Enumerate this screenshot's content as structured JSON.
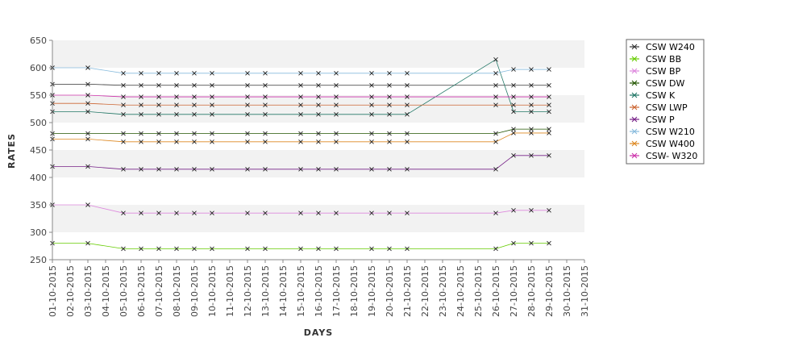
{
  "chart_data": {
    "type": "line",
    "xlabel": "DAYS",
    "ylabel": "RATES",
    "ylim": [
      250,
      650
    ],
    "yticks": [
      250,
      300,
      350,
      400,
      450,
      500,
      550,
      600,
      650
    ],
    "xlim": [
      "2015-10-01",
      "2015-10-31"
    ],
    "xtick_labels": [
      "01-10-2015",
      "02-10-2015",
      "03-10-2015",
      "04-10-2015",
      "05-10-2015",
      "06-10-2015",
      "07-10-2015",
      "08-10-2015",
      "09-10-2015",
      "10-10-2015",
      "11-10-2015",
      "12-10-2015",
      "13-10-2015",
      "14-10-2015",
      "15-10-2015",
      "16-10-2015",
      "17-10-2015",
      "18-10-2015",
      "19-10-2015",
      "20-10-2015",
      "21-10-2015",
      "22-10-2015",
      "23-10-2015",
      "24-10-2015",
      "25-10-2015",
      "26-10-2015",
      "27-10-2015",
      "28-10-2015",
      "29-10-2015",
      "30-10-2015",
      "31-10-2015"
    ],
    "grid": "alternating horizontal bands",
    "legend_position": "right",
    "x": [
      "2015-10-01",
      "2015-10-03",
      "2015-10-05",
      "2015-10-06",
      "2015-10-07",
      "2015-10-08",
      "2015-10-09",
      "2015-10-10",
      "2015-10-12",
      "2015-10-13",
      "2015-10-15",
      "2015-10-16",
      "2015-10-17",
      "2015-10-19",
      "2015-10-20",
      "2015-10-21",
      "2015-10-26",
      "2015-10-27",
      "2015-10-28",
      "2015-10-29"
    ],
    "series": [
      {
        "name": "CSW  W240",
        "color": "#333333",
        "values": [
          570,
          570,
          568,
          568,
          568,
          568,
          568,
          568,
          568,
          568,
          568,
          568,
          568,
          568,
          568,
          568,
          568,
          568,
          568,
          568
        ]
      },
      {
        "name": "CSW BB",
        "color": "#66cc00",
        "values": [
          280,
          280,
          270,
          270,
          270,
          270,
          270,
          270,
          270,
          270,
          270,
          270,
          270,
          270,
          270,
          270,
          270,
          280,
          280,
          280
        ]
      },
      {
        "name": "CSW BP",
        "color": "#dd88dd",
        "values": [
          350,
          350,
          335,
          335,
          335,
          335,
          335,
          335,
          335,
          335,
          335,
          335,
          335,
          335,
          335,
          335,
          335,
          340,
          340,
          340
        ]
      },
      {
        "name": "CSW DW",
        "color": "#225500",
        "values": [
          480,
          480,
          480,
          480,
          480,
          480,
          480,
          480,
          480,
          480,
          480,
          480,
          480,
          480,
          480,
          480,
          480,
          488,
          488,
          488
        ]
      },
      {
        "name": "CSW K",
        "color": "#227766",
        "values": [
          520,
          520,
          515,
          515,
          515,
          515,
          515,
          515,
          515,
          515,
          515,
          515,
          515,
          515,
          515,
          515,
          615,
          520,
          520,
          520
        ]
      },
      {
        "name": "CSW LWP",
        "color": "#cc6633",
        "values": [
          535,
          535,
          532,
          532,
          532,
          532,
          532,
          532,
          532,
          532,
          532,
          532,
          532,
          532,
          532,
          532,
          532,
          532,
          532,
          532
        ]
      },
      {
        "name": "CSW P",
        "color": "#772288",
        "values": [
          420,
          420,
          415,
          415,
          415,
          415,
          415,
          415,
          415,
          415,
          415,
          415,
          415,
          415,
          415,
          415,
          415,
          440,
          440,
          440
        ]
      },
      {
        "name": "CSW W210",
        "color": "#88bbdd",
        "values": [
          600,
          600,
          590,
          590,
          590,
          590,
          590,
          590,
          590,
          590,
          590,
          590,
          590,
          590,
          590,
          590,
          590,
          597,
          597,
          597
        ]
      },
      {
        "name": "CSW W400",
        "color": "#dd8822",
        "values": [
          470,
          470,
          465,
          465,
          465,
          465,
          465,
          465,
          465,
          465,
          465,
          465,
          465,
          465,
          465,
          465,
          465,
          481,
          481,
          481
        ]
      },
      {
        "name": "CSW- W320",
        "color": "#cc33aa",
        "values": [
          550,
          550,
          547,
          547,
          547,
          547,
          547,
          547,
          547,
          547,
          547,
          547,
          547,
          547,
          547,
          547,
          547,
          547,
          547,
          547
        ]
      }
    ]
  }
}
